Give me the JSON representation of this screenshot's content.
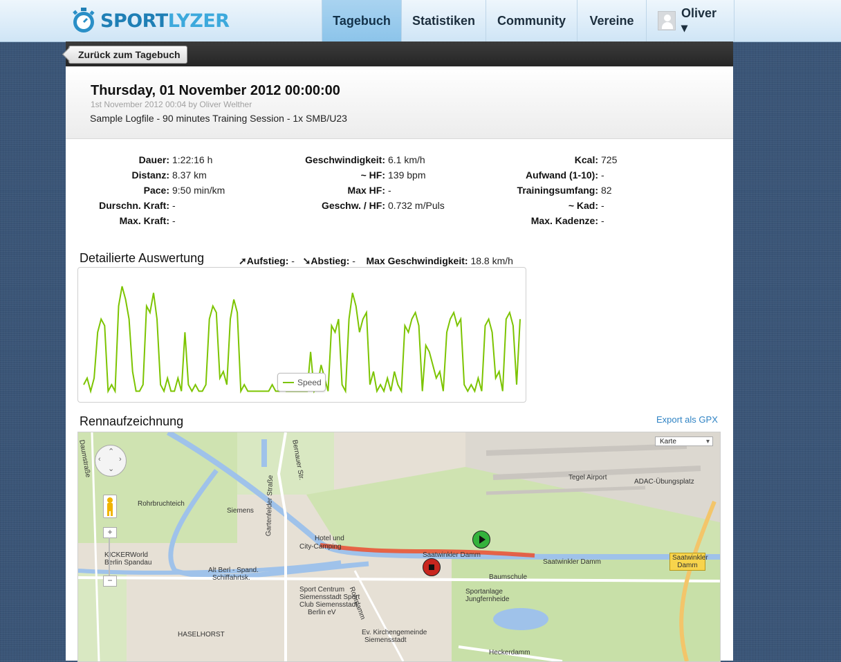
{
  "brand": {
    "name_part1": "SPORT",
    "name_part2": "LYZER"
  },
  "nav": {
    "items": [
      {
        "label": "Tagebuch",
        "active": true
      },
      {
        "label": "Statistiken",
        "active": false
      },
      {
        "label": "Community",
        "active": false
      },
      {
        "label": "Vereine",
        "active": false
      }
    ],
    "user": "Oliver ▾"
  },
  "back_button": "Zurück zum Tagebuch",
  "session": {
    "title": "Thursday, 01 November 2012 00:00:00",
    "meta": "1st November 2012 00:04 by Oliver Welther",
    "description": "Sample Logfile - 90 minutes Training Session - 1x SMB/U23"
  },
  "stats": {
    "col1": [
      {
        "label": "Dauer:",
        "value": "1:22:16 h"
      },
      {
        "label": "Distanz:",
        "value": "8.37 km"
      },
      {
        "label": "Pace:",
        "value": "9:50 min/km"
      },
      {
        "label": "Durschn. Kraft:",
        "value": "-"
      },
      {
        "label": "Max. Kraft:",
        "value": "-"
      }
    ],
    "col2": [
      {
        "label": "Geschwindigkeit:",
        "value": "6.1 km/h"
      },
      {
        "label": "~ HF:",
        "value": "139 bpm"
      },
      {
        "label": "Max HF:",
        "value": "-"
      },
      {
        "label": "Geschw. / HF:",
        "value": "0.732 m/Puls"
      }
    ],
    "col3": [
      {
        "label": "Kcal:",
        "value": "725"
      },
      {
        "label": "Aufwand (1-10):",
        "value": "-"
      },
      {
        "label": "Trainingsumfang:",
        "value": "82"
      },
      {
        "label": "~ Kad:",
        "value": "-"
      },
      {
        "label": "Max. Kadenze:",
        "value": "-"
      }
    ]
  },
  "analysis": {
    "title": "Detailierte Auswertung",
    "ascent_label": "Aufstieg:",
    "ascent_value": "-",
    "descent_label": "Abstieg:",
    "descent_value": "-",
    "max_speed_label": "Max Geschwindigkeit:",
    "max_speed_value": "18.8 km/h"
  },
  "chart_data": {
    "type": "line",
    "series": [
      {
        "name": "Speed",
        "color": "#7cc400",
        "values": [
          2,
          3,
          1,
          3,
          10,
          12,
          11,
          1,
          2,
          1,
          14,
          17,
          15,
          12,
          4,
          1,
          1,
          2,
          14,
          13,
          16,
          12,
          2,
          1,
          3,
          1,
          1,
          3,
          1,
          10,
          2,
          1,
          2,
          1,
          1,
          2,
          12,
          14,
          13,
          3,
          4,
          2,
          12,
          15,
          13,
          1,
          2,
          1,
          1,
          1,
          1,
          1,
          1,
          1,
          2,
          1,
          1,
          2,
          1,
          1,
          1,
          1,
          1,
          1,
          1,
          7,
          1,
          2,
          5,
          3,
          1,
          11,
          10,
          12,
          2,
          1,
          12,
          16,
          14,
          10,
          12,
          13,
          2,
          4,
          1,
          2,
          1,
          3,
          1,
          4,
          2,
          1,
          11,
          10,
          12,
          13,
          11,
          1,
          8,
          7,
          5,
          3,
          4,
          1,
          10,
          12,
          13,
          11,
          12,
          2,
          1,
          2,
          1,
          3,
          1,
          11,
          12,
          10,
          3,
          4,
          1,
          12,
          13,
          11,
          2,
          12
        ]
      }
    ],
    "ylim": [
      0,
      19
    ],
    "grid": false,
    "legend": "bottom-center"
  },
  "race": {
    "title": "Rennaufzeichnung",
    "export": "Export als GPX"
  },
  "map": {
    "type_label": "Karte",
    "labels": [
      "Tegel Airport",
      "ADAC-Übungsplatz",
      "Rohrbruchteich",
      "Siemens",
      "Hotel und",
      "City-Camping",
      "KICKERWorld",
      "Berlin Spandau",
      "Alt Berl - Spand.",
      "Schiffahrtsk.",
      "Saatwinkler Damm",
      "Saatwinkler Damm",
      "Baumschule",
      "Sportanlage",
      "Jungfernheide",
      "Sport Centrum",
      "Siemensstadt Sport",
      "Club Siemensstadt",
      "Berlin eV",
      "Ev. Kirchengemeinde",
      "Siemensstadt",
      "HASELHORST",
      "Heckerdamm",
      "Rohrdamm",
      "Gartenfelder Straße",
      "Bernauer Str.",
      "Daumstraße"
    ],
    "highway_sign": "Saatwinkler Damm",
    "route_color": "#e8553a"
  }
}
